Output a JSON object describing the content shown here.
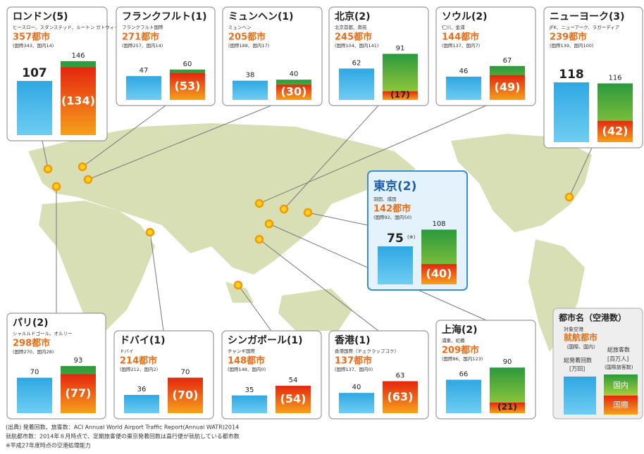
{
  "cities": [
    {
      "name": "ロンドン(5)",
      "airports": "ヒースロー、スタンステッド、ルートン ガトウィック、シティ",
      "city_count": "357都市",
      "breakdown": "(国際343、国内14)",
      "departures": 107,
      "passengers": 146,
      "international": 134,
      "international_label": "(134)"
    },
    {
      "name": "フランクフルト(1)",
      "airports": "フランクフルト国際",
      "city_count": "271都市",
      "breakdown": "(国際257、国内14)",
      "departures": 47,
      "passengers": 60,
      "international": 53,
      "international_label": "(53)"
    },
    {
      "name": "ミュンヘン(1)",
      "airports": "ミュンヘン",
      "city_count": "205都市",
      "breakdown": "(国際188、国内17)",
      "departures": 38,
      "passengers": 40,
      "international": 30,
      "international_label": "(30)"
    },
    {
      "name": "北京(2)",
      "airports": "北京首都、南苑",
      "city_count": "245都市",
      "breakdown": "(国際104、国内141)",
      "departures": 62,
      "passengers": 91,
      "international": 17,
      "international_label": "(17)"
    },
    {
      "name": "ソウル(2)",
      "airports": "仁川、金浦",
      "city_count": "144都市",
      "breakdown": "(国際137、国内7)",
      "departures": 46,
      "passengers": 67,
      "international": 49,
      "international_label": "(49)"
    },
    {
      "name": "ニューヨーク(3)",
      "airports": "JFK、ニューアーク、ラガーディア",
      "city_count": "239都市",
      "breakdown": "(国際139、国内100)",
      "departures": 118,
      "passengers": 116,
      "international": 42,
      "international_label": "(42)"
    },
    {
      "name": "東京(2)",
      "airports": "羽田、成田",
      "city_count": "142都市",
      "breakdown": "(国際92、国内50)",
      "departures": 75,
      "note": "(※)",
      "passengers": 108,
      "international": 40,
      "international_label": "(40)"
    },
    {
      "name": "パリ(2)",
      "airports": "シャルルドゴール、オルリー",
      "city_count": "298都市",
      "breakdown": "(国際270、国内28)",
      "departures": 70,
      "passengers": 93,
      "international": 77,
      "international_label": "(77)"
    },
    {
      "name": "ドバイ(1)",
      "airports": "ドバイ",
      "city_count": "214都市",
      "breakdown": "(国際212、国内2)",
      "departures": 36,
      "passengers": 70,
      "international": 70,
      "international_label": "(70)"
    },
    {
      "name": "シンガポール(1)",
      "airports": "チャンギ国際",
      "city_count": "148都市",
      "breakdown": "(国際148、国内0)",
      "departures": 35,
      "passengers": 54,
      "international": 54,
      "international_label": "(54)"
    },
    {
      "name": "香港(1)",
      "airports": "香港国際（チェクラップコク）",
      "city_count": "137都市",
      "breakdown": "(国際137、国内0)",
      "departures": 40,
      "passengers": 63,
      "international": 63,
      "international_label": "(63)"
    },
    {
      "name": "上海(2)",
      "airports": "浦東、虹橋",
      "city_count": "209都市",
      "breakdown": "(国際86、国内123)",
      "departures": 66,
      "passengers": 90,
      "international": 21,
      "international_label": "(21)"
    }
  ],
  "legend": {
    "title": "都市名（空港数）",
    "airports": "対象空港",
    "cities": "就航都市",
    "breakdown": "（国際、国内）",
    "departures": "総発着回数",
    "departures_unit": "[万回]",
    "passengers": "総旅客数",
    "passengers_unit": "[百万人]",
    "passengers_note": "(国際旅客数)",
    "domestic": "国内",
    "international": "国際"
  },
  "footnotes": [
    "(出典) 発着回数、旅客数：ACI Annual World Airport Traffic Report(Annual WATR)2014",
    "就航都市数：2014年８月時点で、定期旅客便の東京発着回数は直行便が就航している都市数",
    "※平成27年度時点の空港処理能力"
  ]
}
